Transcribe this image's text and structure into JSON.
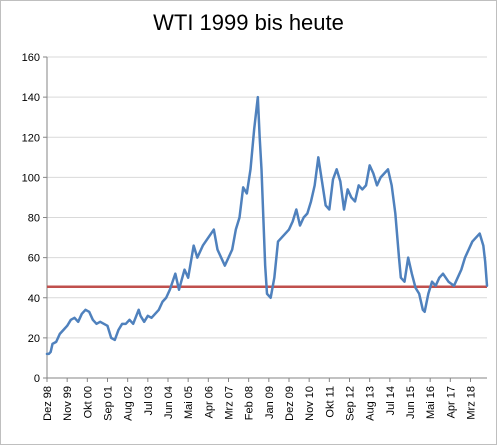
{
  "chart_data": {
    "type": "line",
    "title": "WTI 1999 bis heute",
    "xlabel": "",
    "ylabel": "",
    "ylim": [
      0,
      160
    ],
    "yticks": [
      0,
      20,
      40,
      60,
      80,
      100,
      120,
      140,
      160
    ],
    "x_tick_labels": [
      "Dez 98",
      "Nov 99",
      "Okt 00",
      "Sep 01",
      "Aug 02",
      "Jul 03",
      "Jun 04",
      "Mai 05",
      "Apr 06",
      "Mrz 07",
      "Feb 08",
      "Jan 09",
      "Dez 09",
      "Nov 10",
      "Okt 11",
      "Sep 12",
      "Aug 13",
      "Jul 14",
      "Jun 15",
      "Mai 16",
      "Apr 17",
      "Mrz 18"
    ],
    "grid": true,
    "legend": "none",
    "reference_line": {
      "value": 45.5,
      "color": "#c0504d"
    },
    "series": [
      {
        "color": "#4f81bd",
        "x": [
          "Dez 98",
          "Jan 99",
          "Feb 99",
          "Mrz 99",
          "Mai 99",
          "Jul 99",
          "Sep 99",
          "Nov 99",
          "Jan 00",
          "Mrz 00",
          "Mai 00",
          "Jul 00",
          "Sep 00",
          "Nov 00",
          "Jan 01",
          "Mrz 01",
          "Mai 01",
          "Jul 01",
          "Sep 01",
          "Nov 01",
          "Jan 02",
          "Mrz 02",
          "Mai 02",
          "Jul 02",
          "Sep 02",
          "Nov 02",
          "Feb 03",
          "Mrz 03",
          "Mai 03",
          "Jul 03",
          "Sep 03",
          "Nov 03",
          "Jan 04",
          "Mrz 04",
          "Mai 04",
          "Jul 04",
          "Okt 04",
          "Dez 04",
          "Mrz 05",
          "Mai 05",
          "Aug 05",
          "Okt 05",
          "Jan 06",
          "Apr 06",
          "Jul 06",
          "Sep 06",
          "Jan 07",
          "Mrz 07",
          "Mai 07",
          "Jul 07",
          "Sep 07",
          "Nov 07",
          "Jan 08",
          "Mrz 08",
          "Mai 08",
          "Jul 08",
          "Aug 08",
          "Sep 08",
          "Okt 08",
          "Nov 08",
          "Dez 08",
          "Feb 09",
          "Apr 09",
          "Jun 09",
          "Aug 09",
          "Okt 09",
          "Dez 09",
          "Feb 10",
          "Apr 10",
          "Jun 10",
          "Aug 10",
          "Okt 10",
          "Dez 10",
          "Feb 11",
          "Apr 11",
          "Jun 11",
          "Aug 11",
          "Okt 11",
          "Dez 11",
          "Feb 12",
          "Apr 12",
          "Jun 12",
          "Aug 12",
          "Okt 12",
          "Dez 12",
          "Feb 13",
          "Apr 13",
          "Jun 13",
          "Aug 13",
          "Okt 13",
          "Dez 13",
          "Feb 14",
          "Apr 14",
          "Jun 14",
          "Aug 14",
          "Okt 14",
          "Dez 14",
          "Jan 15",
          "Mrz 15",
          "Mai 15",
          "Jul 15",
          "Sep 15",
          "Nov 15",
          "Jan 16",
          "Feb 16",
          "Apr 16",
          "Jun 16",
          "Aug 16",
          "Okt 16",
          "Dez 16",
          "Mrz 17",
          "Jun 17",
          "Aug 17",
          "Okt 17",
          "Dez 17",
          "Feb 18",
          "Apr 18",
          "Jun 18",
          "Aug 18",
          "Okt 18",
          "Nov 18",
          "Dez 18"
        ],
        "values": [
          12,
          12,
          13,
          17,
          18,
          22,
          24,
          26,
          29,
          30,
          28,
          32,
          34,
          33,
          29,
          27,
          28,
          27,
          26,
          20,
          19,
          24,
          27,
          27,
          29,
          27,
          34,
          31,
          28,
          31,
          30,
          32,
          34,
          38,
          40,
          44,
          52,
          44,
          54,
          50,
          66,
          60,
          66,
          70,
          74,
          64,
          56,
          60,
          64,
          74,
          80,
          95,
          92,
          104,
          124,
          140,
          120,
          104,
          80,
          56,
          42,
          40,
          50,
          68,
          70,
          72,
          74,
          78,
          84,
          76,
          80,
          82,
          88,
          96,
          110,
          98,
          86,
          84,
          99,
          104,
          98,
          84,
          94,
          90,
          88,
          96,
          94,
          96,
          106,
          102,
          96,
          100,
          102,
          104,
          96,
          82,
          60,
          50,
          48,
          60,
          52,
          45,
          42,
          34,
          33,
          42,
          48,
          46,
          50,
          52,
          48,
          46,
          50,
          54,
          60,
          64,
          68,
          70,
          72,
          66,
          58,
          46
        ]
      }
    ]
  }
}
